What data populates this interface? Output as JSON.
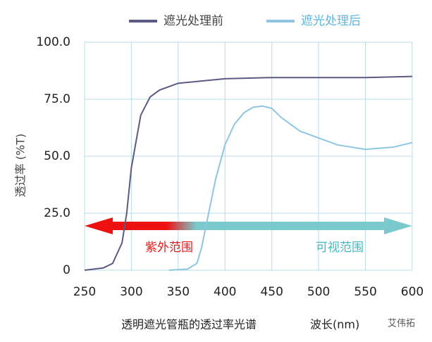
{
  "chart_data": {
    "type": "line",
    "title": "透明遮光管瓶的透过率光谱",
    "x_label": "波长(nm)",
    "y_label": "透过率 (%T)",
    "annotations": [
      "紫外范围",
      "可视范围"
    ],
    "watermark": "艾伟拓",
    "series": [
      {
        "name": "遮光处理前",
        "color": "#5b5a83",
        "x": [
          250,
          270,
          280,
          290,
          295,
          300,
          310,
          320,
          330,
          350,
          400,
          450,
          500,
          550,
          600
        ],
        "values": [
          0,
          1,
          3,
          12,
          25,
          45,
          68,
          76,
          79,
          82,
          84,
          84.5,
          84.5,
          84.5,
          85
        ]
      },
      {
        "name": "遮光处理后",
        "color": "#8ec6e2",
        "x": [
          340,
          360,
          370,
          375,
          380,
          390,
          400,
          410,
          420,
          430,
          440,
          450,
          460,
          480,
          500,
          520,
          550,
          580,
          600
        ],
        "values": [
          0,
          0.5,
          3,
          10,
          20,
          40,
          55,
          64,
          69,
          71.5,
          72,
          71,
          67,
          61,
          58,
          55,
          53,
          54,
          56
        ]
      }
    ],
    "xlim": [
      250,
      600
    ],
    "ylim": [
      0,
      100
    ],
    "xticks": [
      250,
      300,
      350,
      400,
      450,
      500,
      550,
      600
    ],
    "yticks": [
      0,
      {
        "value": 25,
        "label": "25.0"
      },
      {
        "value": 50,
        "label": "50.0"
      },
      {
        "value": 75,
        "label": "75.0"
      },
      {
        "value": 100,
        "label": "100.0"
      }
    ],
    "grid": true
  }
}
